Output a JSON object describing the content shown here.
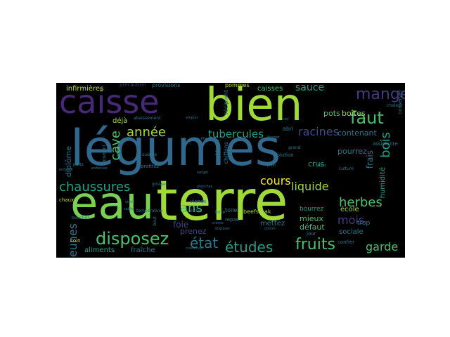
{
  "palette": {
    "green": "#7ad151",
    "light_green": "#a0da39",
    "yellow_green": "#bddf26",
    "teal": "#2a788e",
    "blue": "#31688e",
    "cyan": "#1fa187",
    "mint": "#4ac16d",
    "purple": "#482878",
    "violet": "#443a83",
    "indigo": "#3e4989",
    "yellow": "#fde725"
  },
  "words": [
    {
      "text": "légumes",
      "color": "blue"
    },
    {
      "text": "eau",
      "color": "green"
    },
    {
      "text": "terre",
      "color": "light_green"
    },
    {
      "text": "bien",
      "color": "light_green"
    },
    {
      "text": "caisse",
      "color": "purple"
    },
    {
      "text": "manger",
      "color": "violet"
    },
    {
      "text": "chaussures",
      "color": "cyan"
    },
    {
      "text": "disposez",
      "color": "mint"
    },
    {
      "text": "fruits",
      "color": "mint"
    },
    {
      "text": "études",
      "color": "cyan"
    },
    {
      "text": "état",
      "color": "teal"
    },
    {
      "text": "faut",
      "color": "mint"
    },
    {
      "text": "bois",
      "color": "cyan"
    },
    {
      "text": "cave",
      "color": "mint"
    },
    {
      "text": "année",
      "color": "light_green"
    },
    {
      "text": "ans",
      "color": "mint"
    },
    {
      "text": "cours",
      "color": "yellow"
    },
    {
      "text": "herbes",
      "color": "mint"
    },
    {
      "text": "racines",
      "color": "indigo"
    },
    {
      "text": "liquide",
      "color": "light_green"
    },
    {
      "text": "tubercules",
      "color": "cyan"
    },
    {
      "text": "jeunes",
      "color": "teal"
    },
    {
      "text": "garde",
      "color": "mint"
    },
    {
      "text": "mois",
      "color": "violet"
    },
    {
      "text": "sauce",
      "color": "cyan"
    },
    {
      "text": "infirmières",
      "color": "yellow_green"
    },
    {
      "text": "pots",
      "color": "mint"
    },
    {
      "text": "boîtes",
      "color": "light_green"
    },
    {
      "text": "caisses",
      "color": "mint"
    },
    {
      "text": "contenant",
      "color": "teal"
    },
    {
      "text": "crus",
      "color": "cyan"
    },
    {
      "text": "frais",
      "color": "teal"
    },
    {
      "text": "pourrez",
      "color": "teal"
    },
    {
      "text": "diplôme",
      "color": "teal"
    },
    {
      "text": "aliments",
      "color": "cyan"
    },
    {
      "text": "fraîche",
      "color": "teal"
    },
    {
      "text": "foie",
      "color": "indigo"
    },
    {
      "text": "prenez",
      "color": "indigo"
    },
    {
      "text": "mieux",
      "color": "mint"
    },
    {
      "text": "défaut",
      "color": "mint"
    },
    {
      "text": "mettez",
      "color": "teal"
    },
    {
      "text": "école",
      "color": "light_green"
    },
    {
      "text": "bourrez",
      "color": "cyan"
    },
    {
      "text": "sociale",
      "color": "teal"
    },
    {
      "text": "trop",
      "color": "teal"
    },
    {
      "text": "humidité",
      "color": "cyan"
    },
    {
      "text": "déjà",
      "color": "light_green"
    },
    {
      "text": "beefsteak",
      "color": "light_green"
    },
    {
      "text": "toile",
      "color": "teal"
    },
    {
      "text": "pommes",
      "color": "yellow_green"
    },
    {
      "text": "provisions",
      "color": "teal"
    },
    {
      "text": "précaution",
      "color": "violet"
    },
    {
      "text": "repas",
      "color": "teal"
    },
    {
      "text": "viande",
      "color": "teal"
    },
    {
      "text": "profitez",
      "color": "teal"
    },
    {
      "text": "abaissement",
      "color": "teal"
    },
    {
      "text": "obtenir",
      "color": "teal"
    },
    {
      "text": "chiffons",
      "color": "teal"
    },
    {
      "text": "récipient",
      "color": "teal"
    },
    {
      "text": "abri",
      "color": "teal"
    },
    {
      "text": "assistante",
      "color": "teal"
    },
    {
      "text": "conserver",
      "color": "teal"
    },
    {
      "text": "solution",
      "color": "teal"
    },
    {
      "text": "jour",
      "color": "teal"
    },
    {
      "text": "culture",
      "color": "teal"
    },
    {
      "text": "confier",
      "color": "teal"
    },
    {
      "text": "puits",
      "color": "teal"
    },
    {
      "text": "cuisine",
      "color": "teal"
    },
    {
      "text": "enfants",
      "color": "teal"
    },
    {
      "text": "chaux",
      "color": "yellow_green"
    },
    {
      "text": "coin",
      "color": "yellow_green"
    },
    {
      "text": "bouchez",
      "color": "teal"
    },
    {
      "text": "température",
      "color": "teal"
    },
    {
      "text": "forte",
      "color": "teal"
    },
    {
      "text": "éviter",
      "color": "teal"
    },
    {
      "text": "grosse",
      "color": "teal"
    },
    {
      "text": "chaleur",
      "color": "teal"
    },
    {
      "text": "planches",
      "color": "teal"
    },
    {
      "text": "grand",
      "color": "teal"
    },
    {
      "text": "moment",
      "color": "teal"
    },
    {
      "text": "emploi",
      "color": "teal"
    },
    {
      "text": "conservez",
      "color": "teal"
    },
    {
      "text": "contre",
      "color": "teal"
    },
    {
      "text": "crème",
      "color": "teal"
    },
    {
      "text": "ranger",
      "color": "teal"
    },
    {
      "text": "filles",
      "color": "teal"
    },
    {
      "text": "enfoncez",
      "color": "teal"
    },
    {
      "text": "bout",
      "color": "teal"
    },
    {
      "text": "disposer",
      "color": "teal"
    },
    {
      "text": "donner",
      "color": "teal"
    },
    {
      "text": "plein",
      "color": "teal"
    },
    {
      "text": "ciel",
      "color": "teal"
    },
    {
      "text": "tiges",
      "color": "teal"
    },
    {
      "text": "sable",
      "color": "teal"
    },
    {
      "text": "soleil",
      "color": "teal"
    }
  ]
}
